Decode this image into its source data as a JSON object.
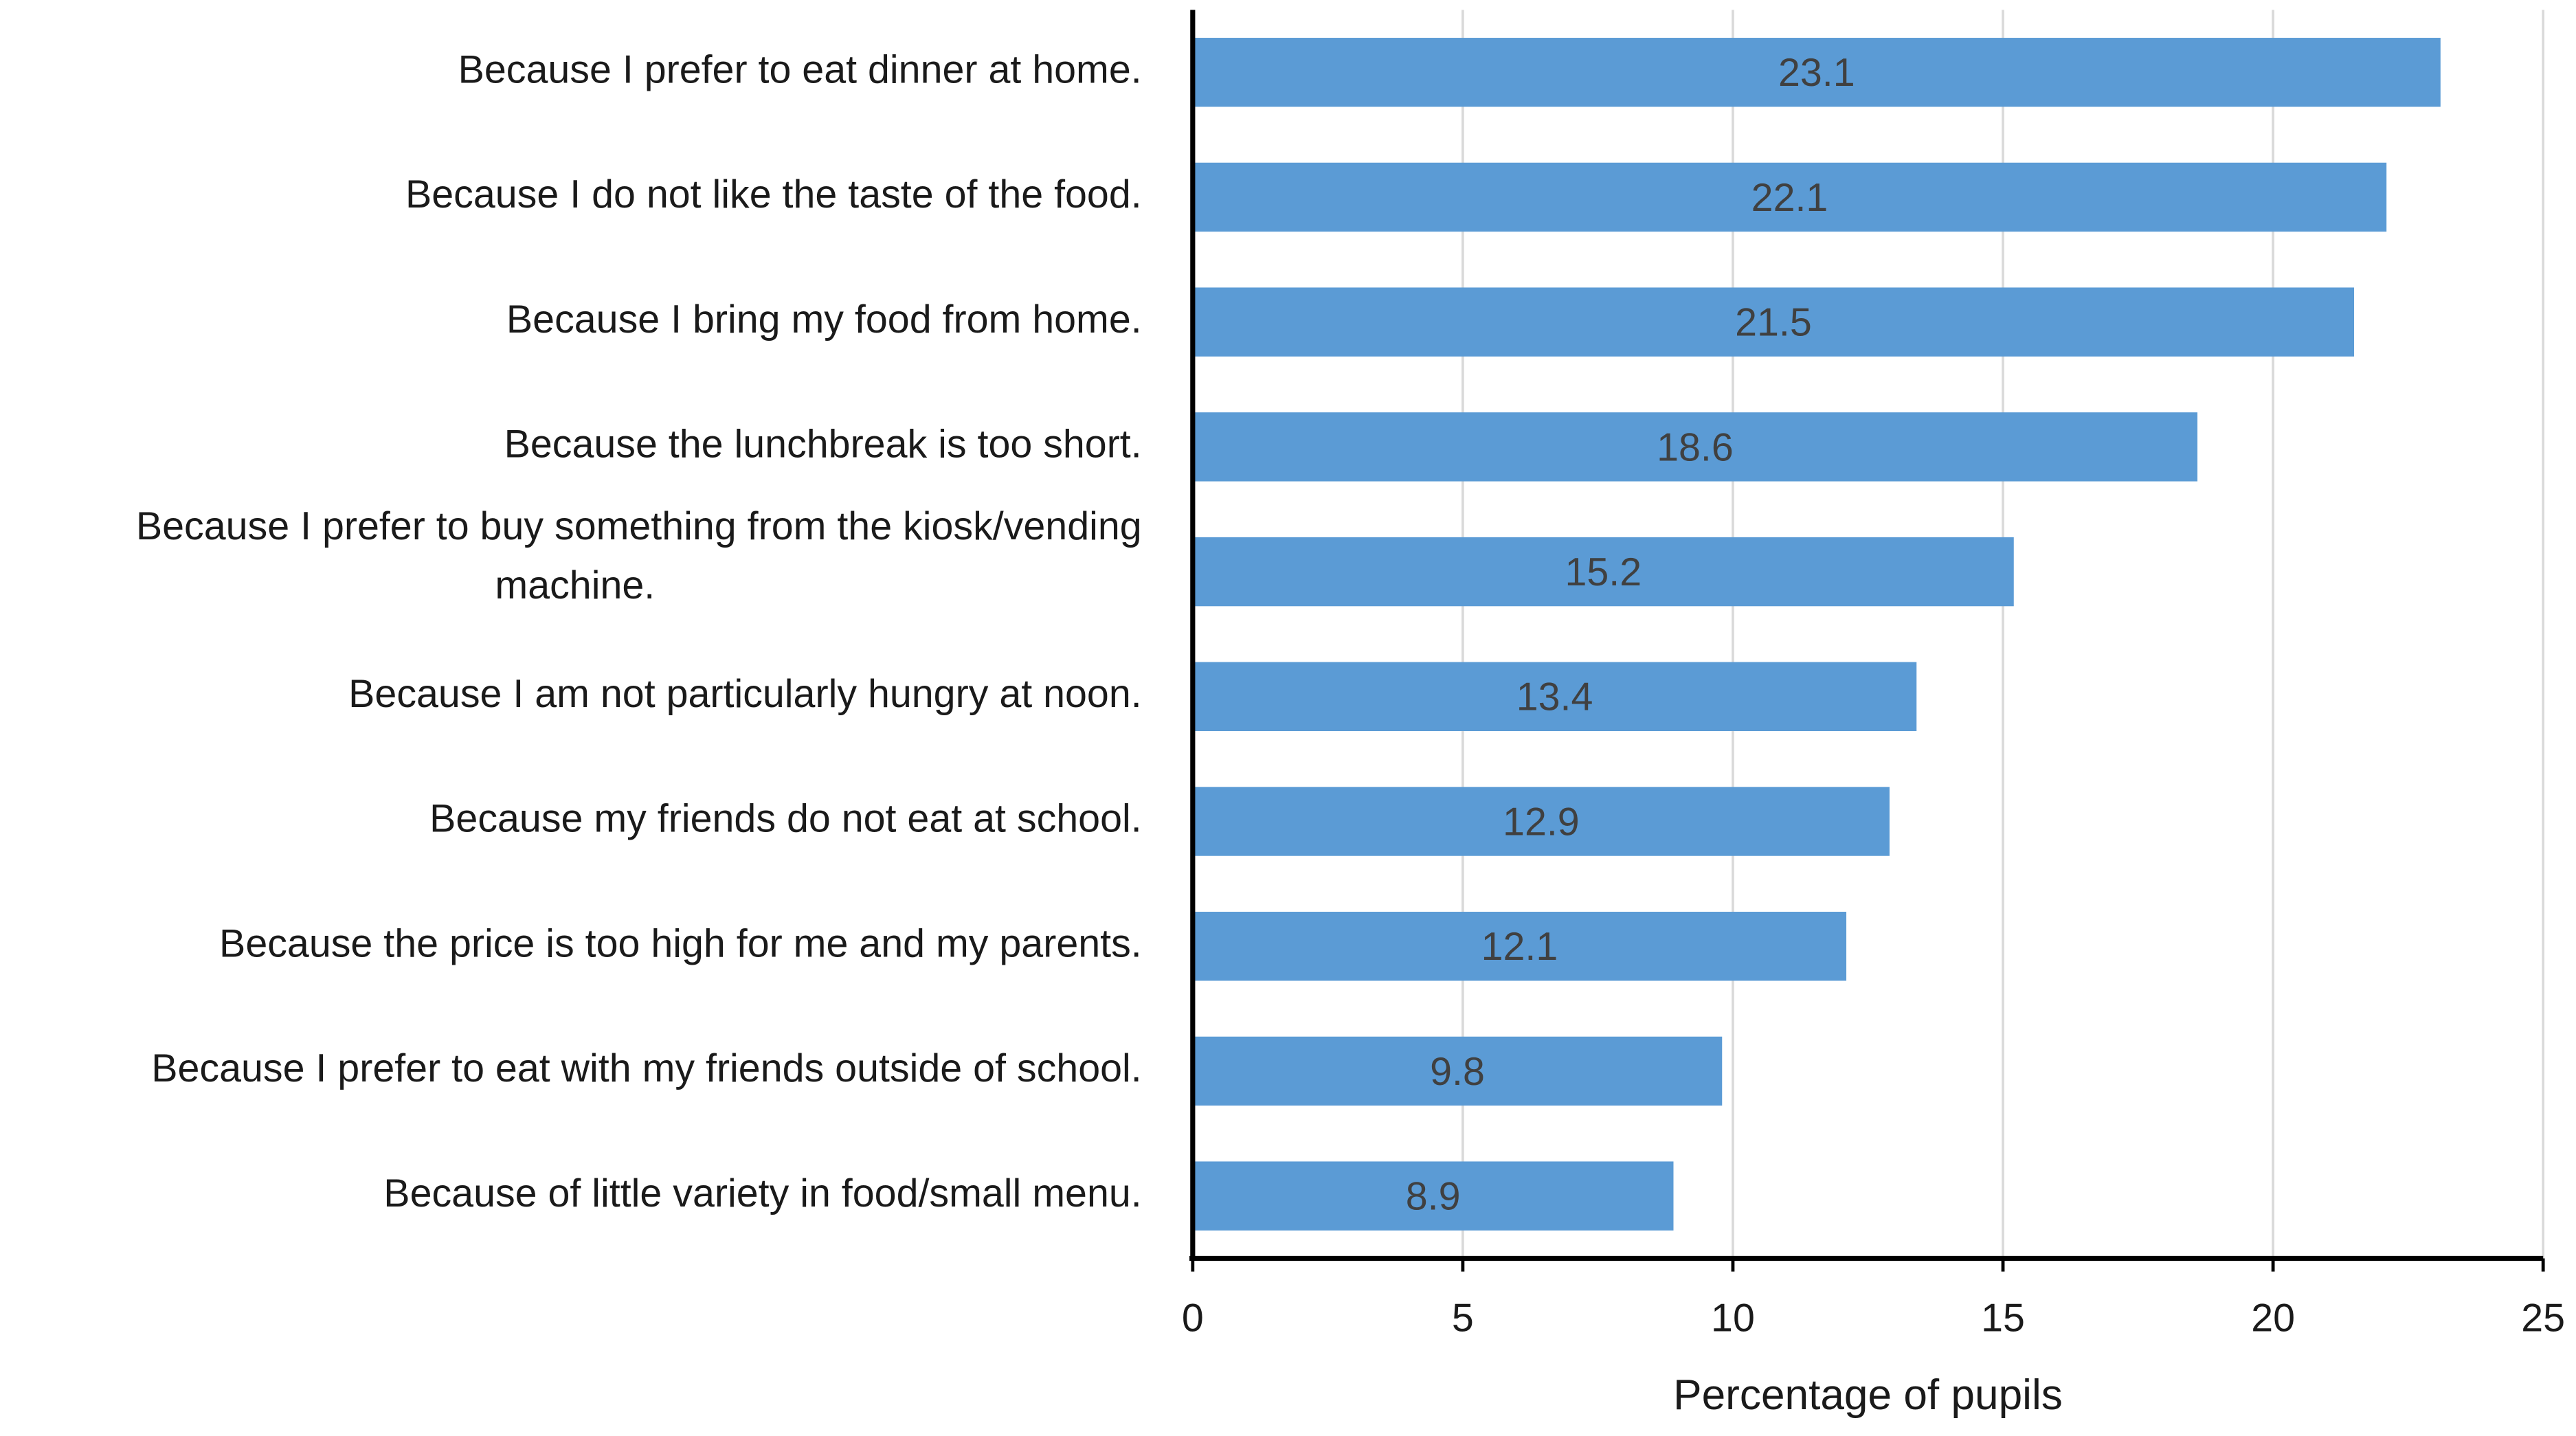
{
  "chart_data": {
    "type": "bar",
    "orientation": "horizontal",
    "categories": [
      "Because I prefer to eat dinner at home.",
      "Because I do not like the taste of the food.",
      "Because I bring my food from home.",
      "Because the lunchbreak is too short.",
      "Because I prefer to buy something from the kiosk/vending machine.",
      "Because I am not particularly hungry at noon.",
      "Because my friends do not eat at school.",
      "Because the price is too high for me and my parents.",
      "Because I prefer to eat with my friends outside of school.",
      "Because of little variety in food/small menu."
    ],
    "values": [
      23.1,
      22.1,
      21.5,
      18.6,
      15.2,
      13.4,
      12.9,
      12.1,
      9.8,
      8.9
    ],
    "color": "#5b9bd5",
    "x_label": "Percentage of pupils",
    "xlim": [
      0,
      25
    ],
    "xticks": [
      0,
      5,
      10,
      15,
      20,
      25
    ],
    "grid": true,
    "data_labels": true
  }
}
